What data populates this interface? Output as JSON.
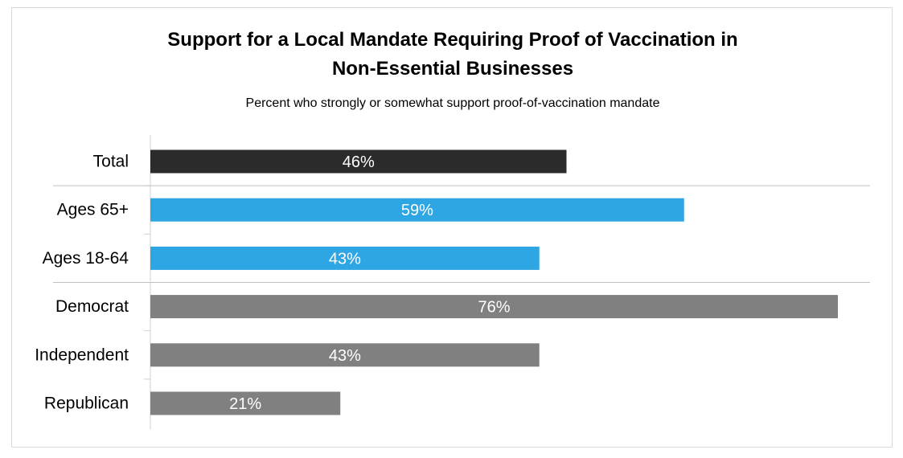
{
  "chart_data": {
    "type": "bar",
    "orientation": "horizontal",
    "title": "Support for a Local Mandate Requiring Proof of Vaccination in Non-Essential Businesses",
    "title_lines": [
      "Support for a Local Mandate Requiring Proof of Vaccination in",
      "Non-Essential Businesses"
    ],
    "subtitle": "Percent who strongly or somewhat support proof-of-vaccination mandate",
    "categories": [
      "Total",
      "Ages 65+",
      "Ages 18-64",
      "Democrat",
      "Independent",
      "Republican"
    ],
    "values": [
      46,
      59,
      43,
      76,
      43,
      21
    ],
    "data_labels": [
      "46%",
      "59%",
      "43%",
      "76%",
      "43%",
      "21%"
    ],
    "unit": "%",
    "xlim": [
      0,
      100
    ],
    "colors": [
      "#2b2b2b",
      "#2ea6e3",
      "#2ea6e3",
      "#808080",
      "#808080",
      "#808080"
    ],
    "group_separators_after": [
      "Total",
      "Ages 18-64"
    ],
    "grid": false,
    "legend": "none"
  }
}
